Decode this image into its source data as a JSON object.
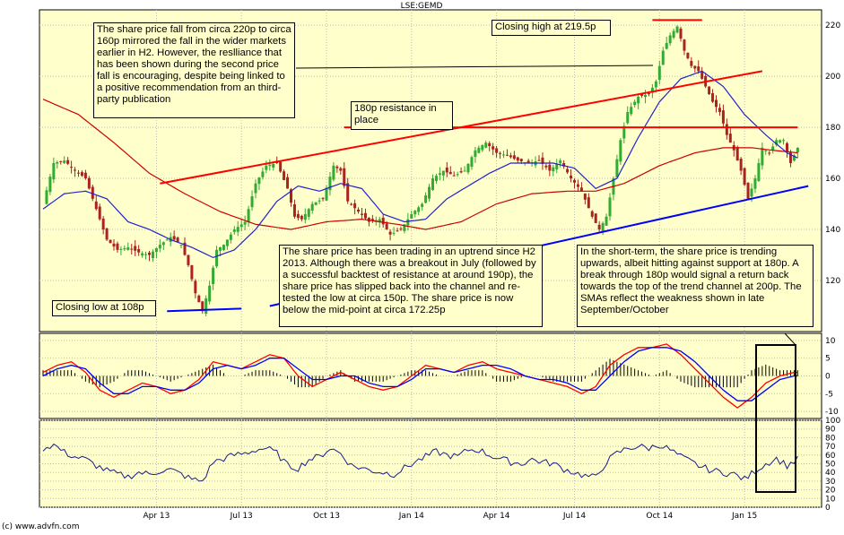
{
  "chart_data": {
    "type": "line",
    "title": "LSE:GEMD",
    "credit": "(c) www.advfn.com",
    "x_labels": [
      "Apr 13",
      "Jul 13",
      "Oct 13",
      "Jan 14",
      "Apr 14",
      "Jul 14",
      "Oct 14",
      "Jan 15"
    ],
    "price_panel": {
      "series_type": "candlestick",
      "ylim": [
        100,
        226
      ],
      "y_ticks": [
        120,
        140,
        160,
        180,
        200,
        220
      ],
      "close_anchors": [
        [
          0,
          150
        ],
        [
          3,
          166
        ],
        [
          6,
          167
        ],
        [
          9,
          163
        ],
        [
          12,
          160
        ],
        [
          15,
          148
        ],
        [
          18,
          136
        ],
        [
          21,
          132
        ],
        [
          24,
          133
        ],
        [
          27,
          131
        ],
        [
          30,
          130
        ],
        [
          33,
          134
        ],
        [
          36,
          137
        ],
        [
          39,
          134
        ],
        [
          41,
          126
        ],
        [
          43,
          115
        ],
        [
          45,
          108
        ],
        [
          47,
          118
        ],
        [
          49,
          132
        ],
        [
          51,
          134
        ],
        [
          54,
          140
        ],
        [
          57,
          143
        ],
        [
          60,
          158
        ],
        [
          63,
          165
        ],
        [
          66,
          166
        ],
        [
          69,
          156
        ],
        [
          71,
          145
        ],
        [
          73,
          144
        ],
        [
          76,
          150
        ],
        [
          79,
          152
        ],
        [
          82,
          165
        ],
        [
          84,
          163
        ],
        [
          86,
          151
        ],
        [
          89,
          147
        ],
        [
          92,
          143
        ],
        [
          95,
          144
        ],
        [
          98,
          138
        ],
        [
          101,
          140
        ],
        [
          104,
          146
        ],
        [
          107,
          150
        ],
        [
          110,
          160
        ],
        [
          113,
          163
        ],
        [
          116,
          161
        ],
        [
          119,
          163
        ],
        [
          122,
          171
        ],
        [
          125,
          174
        ],
        [
          128,
          170
        ],
        [
          131,
          169
        ],
        [
          134,
          167
        ],
        [
          137,
          166
        ],
        [
          140,
          167
        ],
        [
          143,
          163
        ],
        [
          146,
          167
        ],
        [
          149,
          160
        ],
        [
          152,
          155
        ],
        [
          155,
          145
        ],
        [
          157,
          140
        ],
        [
          159,
          145
        ],
        [
          161,
          160
        ],
        [
          163,
          175
        ],
        [
          165,
          186
        ],
        [
          168,
          192
        ],
        [
          171,
          193
        ],
        [
          173,
          198
        ],
        [
          175,
          210
        ],
        [
          177,
          216
        ],
        [
          179,
          219.5
        ],
        [
          181,
          210
        ],
        [
          183,
          204
        ],
        [
          185,
          202
        ],
        [
          187,
          196
        ],
        [
          189,
          190
        ],
        [
          191,
          186
        ],
        [
          193,
          177
        ],
        [
          195,
          171
        ],
        [
          197,
          163
        ],
        [
          199,
          152
        ],
        [
          201,
          160
        ],
        [
          203,
          172
        ],
        [
          205,
          170
        ],
        [
          207,
          175
        ],
        [
          209,
          175
        ],
        [
          211,
          166
        ],
        [
          213,
          172
        ]
      ],
      "sma_blue_anchors": [
        [
          0,
          148
        ],
        [
          6,
          154
        ],
        [
          12,
          155
        ],
        [
          18,
          152
        ],
        [
          24,
          143
        ],
        [
          30,
          140
        ],
        [
          36,
          136
        ],
        [
          42,
          133
        ],
        [
          48,
          129
        ],
        [
          54,
          132
        ],
        [
          60,
          140
        ],
        [
          66,
          151
        ],
        [
          72,
          157
        ],
        [
          78,
          155
        ],
        [
          84,
          158
        ],
        [
          90,
          156
        ],
        [
          96,
          146
        ],
        [
          102,
          143
        ],
        [
          108,
          144
        ],
        [
          114,
          152
        ],
        [
          120,
          157
        ],
        [
          126,
          162
        ],
        [
          132,
          166
        ],
        [
          138,
          166
        ],
        [
          144,
          166
        ],
        [
          150,
          164
        ],
        [
          156,
          156
        ],
        [
          162,
          160
        ],
        [
          168,
          176
        ],
        [
          174,
          190
        ],
        [
          180,
          199
        ],
        [
          186,
          202
        ],
        [
          192,
          196
        ],
        [
          198,
          185
        ],
        [
          204,
          177
        ],
        [
          210,
          170
        ],
        [
          213,
          168
        ]
      ],
      "sma_red_anchors": [
        [
          0,
          191
        ],
        [
          10,
          185
        ],
        [
          20,
          174
        ],
        [
          30,
          162
        ],
        [
          40,
          154
        ],
        [
          50,
          147
        ],
        [
          60,
          142
        ],
        [
          70,
          140
        ],
        [
          80,
          143
        ],
        [
          90,
          144
        ],
        [
          100,
          142
        ],
        [
          108,
          140
        ],
        [
          118,
          143
        ],
        [
          128,
          150
        ],
        [
          138,
          154
        ],
        [
          148,
          155
        ],
        [
          156,
          155
        ],
        [
          164,
          158
        ],
        [
          174,
          165
        ],
        [
          184,
          170
        ],
        [
          192,
          172
        ],
        [
          200,
          172
        ],
        [
          206,
          171
        ],
        [
          213,
          170
        ]
      ],
      "lines": [
        {
          "kind": "resistance",
          "color": "#ff0000",
          "from": [
            33,
            158
          ],
          "to": [
            203,
            202
          ]
        },
        {
          "kind": "resistance",
          "color": "#ff0000",
          "from": [
            85,
            180
          ],
          "to": [
            213,
            180
          ]
        },
        {
          "kind": "support",
          "color": "#0000ff",
          "from": [
            64,
            110
          ],
          "to": [
            216,
            157
          ]
        },
        {
          "kind": "support",
          "color": "#0000ff",
          "from": [
            35,
            108
          ],
          "to": [
            56,
            109
          ]
        },
        {
          "kind": "level",
          "color": "#ff0000",
          "from": [
            172,
            222
          ],
          "to": [
            186,
            222
          ]
        }
      ]
    },
    "macd_panel": {
      "ylim": [
        -12,
        12
      ],
      "y_ticks": [
        -10,
        -5,
        0,
        5,
        10
      ],
      "macd_anchors": [
        [
          0,
          1
        ],
        [
          4,
          3
        ],
        [
          8,
          4
        ],
        [
          12,
          1
        ],
        [
          16,
          -4
        ],
        [
          20,
          -6
        ],
        [
          24,
          -4
        ],
        [
          28,
          -2
        ],
        [
          32,
          -3
        ],
        [
          36,
          -5
        ],
        [
          40,
          -4
        ],
        [
          44,
          -1
        ],
        [
          48,
          4
        ],
        [
          52,
          3
        ],
        [
          56,
          2
        ],
        [
          60,
          4
        ],
        [
          64,
          6
        ],
        [
          68,
          5
        ],
        [
          72,
          0
        ],
        [
          76,
          -3
        ],
        [
          80,
          -1
        ],
        [
          84,
          1
        ],
        [
          88,
          -1
        ],
        [
          92,
          -3
        ],
        [
          96,
          -4
        ],
        [
          100,
          -3
        ],
        [
          104,
          0
        ],
        [
          108,
          3
        ],
        [
          112,
          2
        ],
        [
          116,
          1
        ],
        [
          120,
          3
        ],
        [
          124,
          4
        ],
        [
          128,
          2
        ],
        [
          132,
          1
        ],
        [
          136,
          0
        ],
        [
          140,
          -1
        ],
        [
          144,
          -2
        ],
        [
          148,
          -3
        ],
        [
          152,
          -5
        ],
        [
          156,
          -3
        ],
        [
          160,
          3
        ],
        [
          164,
          6
        ],
        [
          168,
          8
        ],
        [
          172,
          8
        ],
        [
          176,
          9
        ],
        [
          180,
          6
        ],
        [
          184,
          2
        ],
        [
          188,
          -2
        ],
        [
          192,
          -6
        ],
        [
          196,
          -9
        ],
        [
          200,
          -6
        ],
        [
          204,
          -2
        ],
        [
          208,
          0
        ],
        [
          212,
          1
        ]
      ],
      "signal_anchors": [
        [
          0,
          0
        ],
        [
          4,
          2
        ],
        [
          8,
          3
        ],
        [
          12,
          2
        ],
        [
          16,
          -2
        ],
        [
          20,
          -5
        ],
        [
          24,
          -5
        ],
        [
          28,
          -3
        ],
        [
          32,
          -3
        ],
        [
          36,
          -4
        ],
        [
          40,
          -4
        ],
        [
          44,
          -2
        ],
        [
          48,
          2
        ],
        [
          52,
          3
        ],
        [
          56,
          2
        ],
        [
          60,
          3
        ],
        [
          64,
          5
        ],
        [
          68,
          5
        ],
        [
          72,
          2
        ],
        [
          76,
          -1
        ],
        [
          80,
          -1
        ],
        [
          84,
          0
        ],
        [
          88,
          0
        ],
        [
          92,
          -2
        ],
        [
          96,
          -3
        ],
        [
          100,
          -3
        ],
        [
          104,
          -1
        ],
        [
          108,
          2
        ],
        [
          112,
          2
        ],
        [
          116,
          1
        ],
        [
          120,
          2
        ],
        [
          124,
          3
        ],
        [
          128,
          3
        ],
        [
          132,
          2
        ],
        [
          136,
          0
        ],
        [
          140,
          -1
        ],
        [
          144,
          -1
        ],
        [
          148,
          -2
        ],
        [
          152,
          -4
        ],
        [
          156,
          -4
        ],
        [
          160,
          0
        ],
        [
          164,
          4
        ],
        [
          168,
          7
        ],
        [
          172,
          8
        ],
        [
          176,
          8
        ],
        [
          180,
          7
        ],
        [
          184,
          4
        ],
        [
          188,
          0
        ],
        [
          192,
          -4
        ],
        [
          196,
          -7
        ],
        [
          200,
          -7
        ],
        [
          204,
          -4
        ],
        [
          208,
          -1
        ],
        [
          212,
          0
        ]
      ],
      "line_colors": {
        "macd": "#ff0000",
        "signal": "#0000ff"
      }
    },
    "rsi_panel": {
      "ylim": [
        0,
        100
      ],
      "y_ticks": [
        0,
        10,
        20,
        30,
        40,
        50,
        60,
        70,
        80,
        90,
        100
      ],
      "rsi_anchors": [
        [
          0,
          68
        ],
        [
          3,
          72
        ],
        [
          6,
          63
        ],
        [
          9,
          58
        ],
        [
          12,
          55
        ],
        [
          15,
          48
        ],
        [
          18,
          42
        ],
        [
          21,
          38
        ],
        [
          24,
          35
        ],
        [
          27,
          40
        ],
        [
          30,
          38
        ],
        [
          33,
          42
        ],
        [
          36,
          43
        ],
        [
          39,
          38
        ],
        [
          42,
          32
        ],
        [
          45,
          30
        ],
        [
          48,
          52
        ],
        [
          51,
          56
        ],
        [
          54,
          60
        ],
        [
          57,
          62
        ],
        [
          60,
          66
        ],
        [
          63,
          68
        ],
        [
          66,
          62
        ],
        [
          69,
          48
        ],
        [
          72,
          45
        ],
        [
          75,
          55
        ],
        [
          78,
          58
        ],
        [
          81,
          68
        ],
        [
          84,
          62
        ],
        [
          87,
          48
        ],
        [
          90,
          45
        ],
        [
          93,
          42
        ],
        [
          96,
          40
        ],
        [
          99,
          38
        ],
        [
          102,
          45
        ],
        [
          105,
          52
        ],
        [
          108,
          58
        ],
        [
          111,
          64
        ],
        [
          114,
          60
        ],
        [
          117,
          58
        ],
        [
          120,
          66
        ],
        [
          123,
          66
        ],
        [
          126,
          60
        ],
        [
          129,
          56
        ],
        [
          132,
          52
        ],
        [
          135,
          50
        ],
        [
          138,
          55
        ],
        [
          141,
          52
        ],
        [
          144,
          50
        ],
        [
          147,
          44
        ],
        [
          150,
          40
        ],
        [
          153,
          36
        ],
        [
          156,
          34
        ],
        [
          159,
          52
        ],
        [
          162,
          62
        ],
        [
          165,
          68
        ],
        [
          168,
          70
        ],
        [
          171,
          68
        ],
        [
          174,
          72
        ],
        [
          177,
          66
        ],
        [
          180,
          58
        ],
        [
          183,
          52
        ],
        [
          186,
          46
        ],
        [
          189,
          42
        ],
        [
          192,
          40
        ],
        [
          195,
          38
        ],
        [
          198,
          32
        ],
        [
          201,
          42
        ],
        [
          204,
          50
        ],
        [
          207,
          56
        ],
        [
          210,
          48
        ],
        [
          213,
          55
        ]
      ],
      "line_color": "#1a1a8c"
    }
  },
  "annotations": {
    "a1": "The share price fall from circa 220p to circa 160p mirrored the fall in the wider markets earlier in H2. However, the reslliance that has been shown during the second price fall is encouraging, despite being linked to a positive recommendation from an third-party publication",
    "a2": "Closing high at 219.5p",
    "a3": "180p resistance in place",
    "a4": "The share price has been trading in an uptrend since H2 2013. Although there was a breakout in July (followed by a successful backtest of resistance at around 190p), the share price has slipped back into the channel and re-tested the low at circa 150p. The share price is now below the mid-point at circa 172.25p",
    "a5": "Closing low at 108p",
    "a6": "In the short-term, the share price is trending upwards, albeit hitting against support at 180p. A break through 180p would signal a return back towards the top of the trend channel at 200p. The SMAs reflect the weakness shown in late September/October"
  },
  "colors": {
    "panel_bg": "#ffffcc",
    "up": "#33aa33",
    "down": "#aa2222",
    "grid": "#bbbbbb"
  }
}
